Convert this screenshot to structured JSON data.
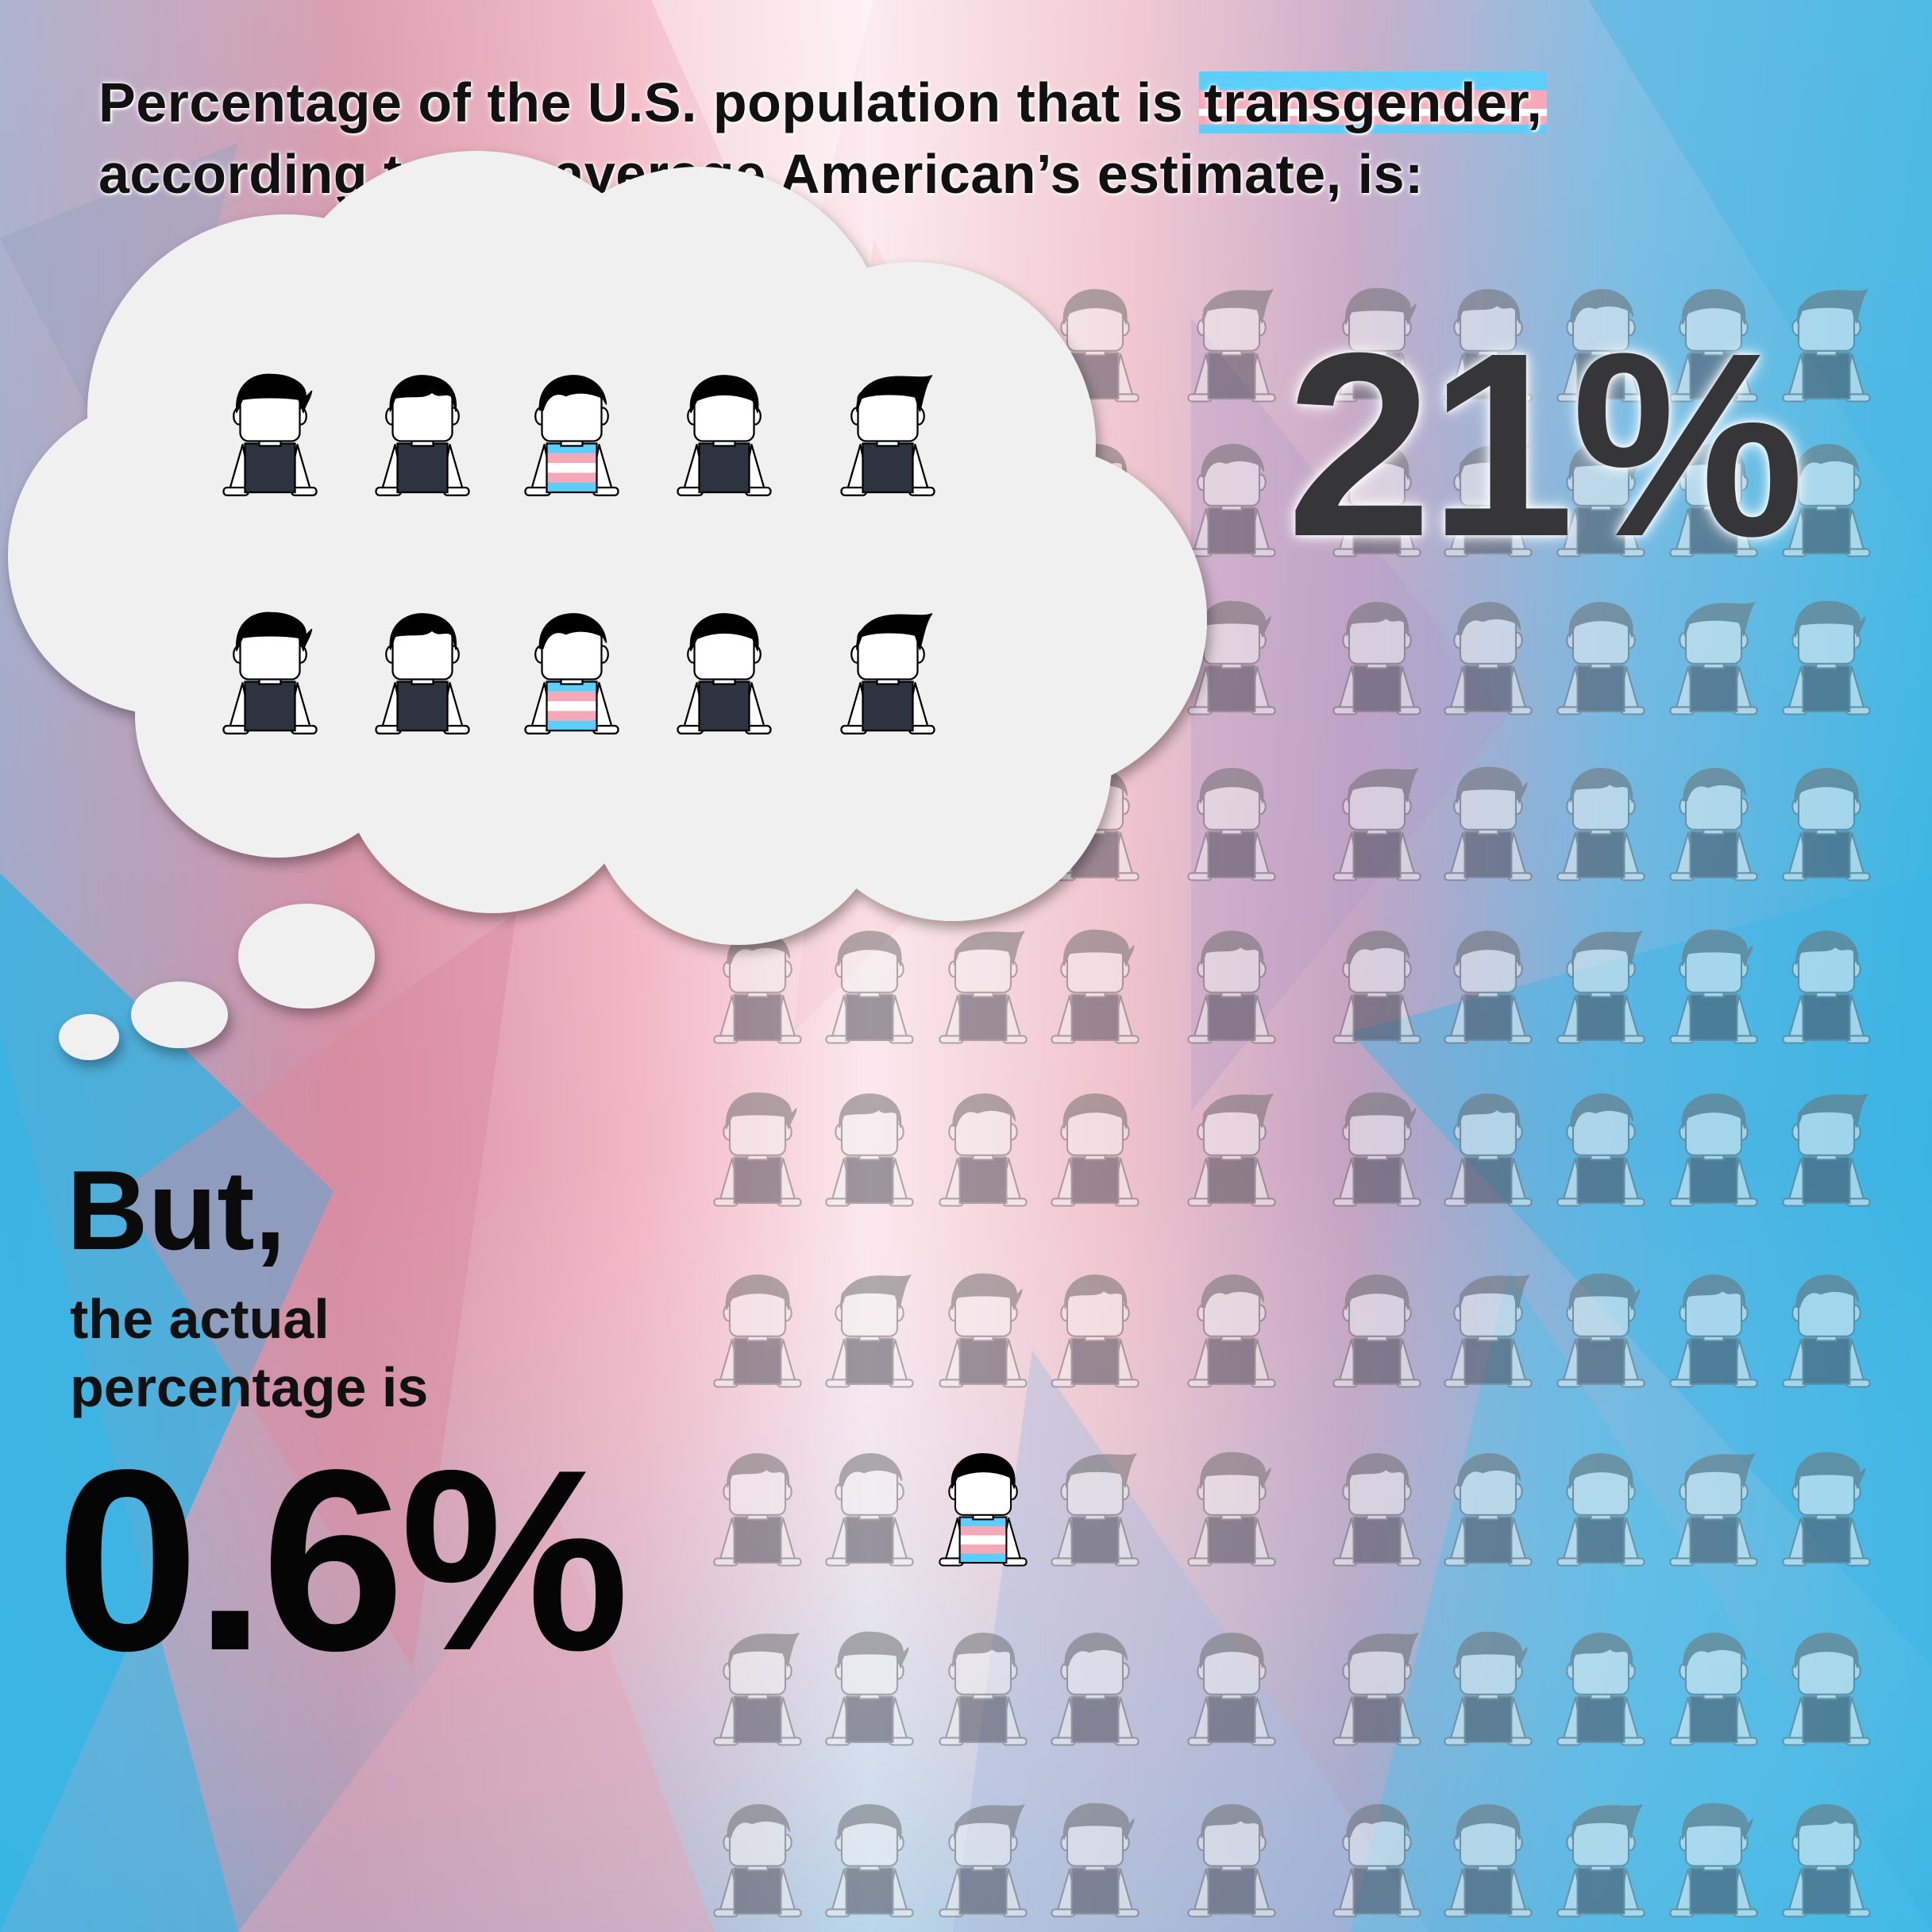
{
  "headline": {
    "line1_before": "Percentage of the U.S. population that is ",
    "line1_highlight": "transgender,",
    "line2": "according to the average American’s estimate, is:"
  },
  "estimate": {
    "value_label": "21%",
    "sample_size": 10,
    "highlighted_in_sample": 2
  },
  "actual": {
    "lead": "But,",
    "label_line1": "the actual",
    "label_line2": "percentage is",
    "value_label": "0.6%",
    "grid_people_visible": 114,
    "highlighted_in_grid": 1
  },
  "colors": {
    "trans_blue": "#5bcefa",
    "trans_pink": "#f5a9b8",
    "trans_white": "#ffffff",
    "shirt_dark": "#2e3340",
    "faded_person": "#7a7a7a",
    "cloud_fill": "#f0f0f0"
  },
  "icons": {
    "person": "person-icon",
    "thought_cloud": "thought-cloud-icon"
  }
}
